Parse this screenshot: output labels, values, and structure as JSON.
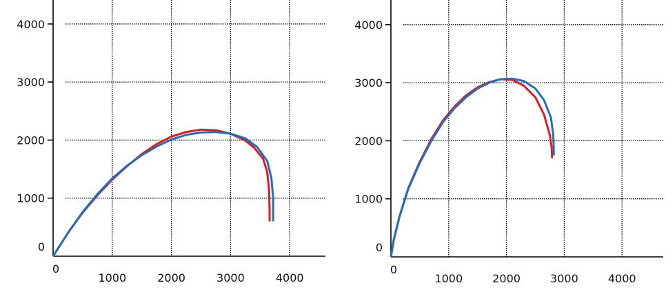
{
  "chart_data": [
    {
      "type": "line",
      "title": "",
      "xlabel": "",
      "ylabel": "",
      "xlim": [
        0,
        4700
      ],
      "ylim": [
        0,
        4300
      ],
      "x_ticks": [
        1000,
        2000,
        3000,
        4000
      ],
      "x_tick_labels": [
        "1000",
        "2000",
        "3000",
        "4000"
      ],
      "y_ticks": [
        1000,
        2000,
        3000,
        4000
      ],
      "y_tick_labels": [
        "1000",
        "2000",
        "3000",
        "4000"
      ],
      "origin_x_label": "0",
      "origin_y_label": "0",
      "grid": "dotted",
      "series": [
        {
          "color": "#e8191e",
          "points": [
            [
              0,
              0
            ],
            [
              250,
              400
            ],
            [
              500,
              750
            ],
            [
              750,
              1050
            ],
            [
              1000,
              1320
            ],
            [
              1250,
              1550
            ],
            [
              1500,
              1760
            ],
            [
              1750,
              1930
            ],
            [
              2000,
              2060
            ],
            [
              2250,
              2140
            ],
            [
              2500,
              2180
            ],
            [
              2750,
              2170
            ],
            [
              3000,
              2110
            ],
            [
              3250,
              1990
            ],
            [
              3400,
              1870
            ],
            [
              3550,
              1680
            ],
            [
              3620,
              1450
            ],
            [
              3650,
              1150
            ],
            [
              3660,
              800
            ],
            [
              3660,
              600
            ]
          ]
        },
        {
          "color": "#1f6fbf",
          "points": [
            [
              0,
              0
            ],
            [
              250,
              400
            ],
            [
              500,
              760
            ],
            [
              750,
              1070
            ],
            [
              1000,
              1340
            ],
            [
              1250,
              1560
            ],
            [
              1500,
              1740
            ],
            [
              1750,
              1890
            ],
            [
              2000,
              2010
            ],
            [
              2250,
              2090
            ],
            [
              2500,
              2130
            ],
            [
              2750,
              2140
            ],
            [
              3000,
              2110
            ],
            [
              3250,
              2030
            ],
            [
              3450,
              1880
            ],
            [
              3620,
              1640
            ],
            [
              3690,
              1350
            ],
            [
              3720,
              1000
            ],
            [
              3720,
              600
            ]
          ]
        }
      ]
    },
    {
      "type": "line",
      "title": "",
      "xlabel": "",
      "ylabel": "",
      "xlim": [
        0,
        4700
      ],
      "ylim": [
        0,
        4300
      ],
      "x_ticks": [
        1000,
        2000,
        3000,
        4000
      ],
      "x_tick_labels": [
        "1000",
        "2000",
        "3000",
        "4000"
      ],
      "y_ticks": [
        1000,
        2000,
        3000,
        4000
      ],
      "y_tick_labels": [
        "1000",
        "2000",
        "3000",
        "4000"
      ],
      "origin_x_label": "0",
      "origin_y_label": "0",
      "grid": "dotted",
      "series": [
        {
          "color": "#e8191e",
          "points": [
            [
              0,
              0
            ],
            [
              50,
              300
            ],
            [
              150,
              700
            ],
            [
              300,
              1180
            ],
            [
              500,
              1640
            ],
            [
              700,
              2030
            ],
            [
              900,
              2350
            ],
            [
              1100,
              2590
            ],
            [
              1300,
              2780
            ],
            [
              1500,
              2920
            ],
            [
              1700,
              3010
            ],
            [
              1900,
              3060
            ],
            [
              2100,
              3050
            ],
            [
              2300,
              2950
            ],
            [
              2500,
              2750
            ],
            [
              2650,
              2450
            ],
            [
              2750,
              2100
            ],
            [
              2780,
              1900
            ],
            [
              2790,
              1700
            ]
          ]
        },
        {
          "color": "#1f6fbf",
          "points": [
            [
              0,
              0
            ],
            [
              50,
              300
            ],
            [
              150,
              700
            ],
            [
              300,
              1170
            ],
            [
              500,
              1620
            ],
            [
              700,
              2000
            ],
            [
              900,
              2320
            ],
            [
              1100,
              2560
            ],
            [
              1300,
              2750
            ],
            [
              1500,
              2900
            ],
            [
              1700,
              3000
            ],
            [
              1900,
              3060
            ],
            [
              2100,
              3070
            ],
            [
              2300,
              3030
            ],
            [
              2500,
              2900
            ],
            [
              2650,
              2700
            ],
            [
              2770,
              2400
            ],
            [
              2810,
              2100
            ],
            [
              2820,
              1800
            ],
            [
              2820,
              1750
            ]
          ]
        }
      ]
    }
  ]
}
